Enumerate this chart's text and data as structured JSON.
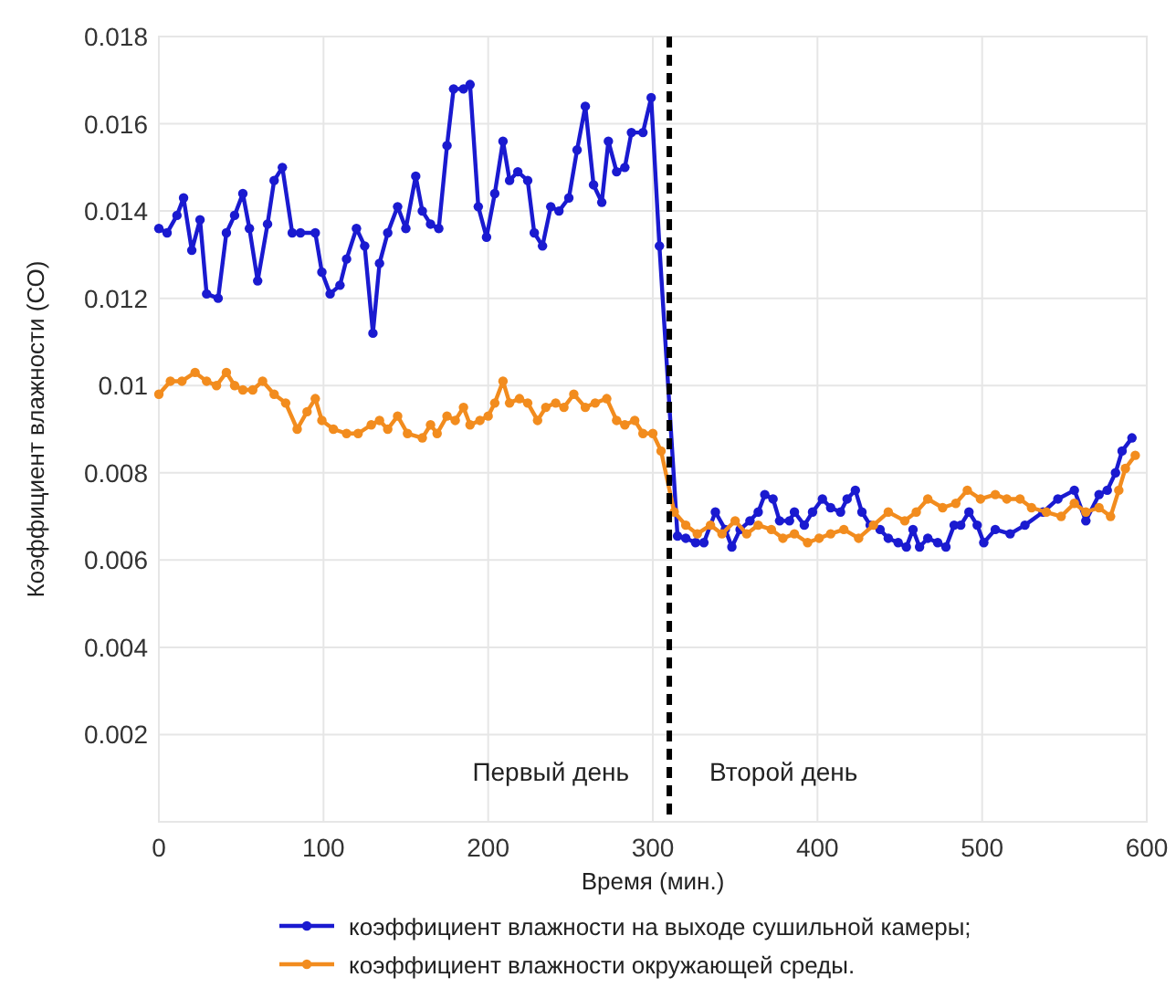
{
  "chart_data": {
    "type": "line",
    "xlabel": "Время (мин.)",
    "ylabel": "Коэффициент влажности (СО)",
    "xlim": [
      0,
      600
    ],
    "xticks": [
      0,
      100,
      200,
      300,
      400,
      500,
      600
    ],
    "ylim": [
      0,
      0.018
    ],
    "yticks": [
      0.002,
      0.004,
      0.006,
      0.008,
      0.01,
      0.012,
      0.014,
      0.016,
      0.018
    ],
    "grid": true,
    "legend": "bottom",
    "marker": "circle",
    "line_style": "solid",
    "ref_lines": [
      {
        "axis": "x",
        "value": 310,
        "color": "#000000",
        "line_style": "dashed"
      }
    ],
    "annotations": [
      "Первый день",
      "Второй день"
    ],
    "series": [
      {
        "name": "коэффициент влажности на выходе сушильной камеры;",
        "color": "#1a1ad0",
        "x": [
          0,
          5,
          11,
          15,
          20,
          25,
          29,
          36,
          41,
          46,
          51,
          55,
          60,
          66,
          70,
          75,
          81,
          86,
          95,
          99,
          104,
          110,
          114,
          120,
          125,
          130,
          134,
          139,
          145,
          150,
          156,
          160,
          165,
          170,
          175,
          179,
          185,
          189,
          194,
          199,
          204,
          209,
          213,
          218,
          224,
          228,
          233,
          238,
          243,
          249,
          254,
          259,
          264,
          269,
          273,
          278,
          283,
          287,
          294,
          299,
          304,
          315,
          320,
          326,
          331,
          338,
          344,
          348,
          353,
          359,
          364,
          368,
          373,
          377,
          383,
          386,
          392,
          397,
          403,
          408,
          414,
          418,
          423,
          427,
          432,
          438,
          443,
          449,
          454,
          458,
          462,
          467,
          473,
          478,
          483,
          487,
          492,
          497,
          501,
          508,
          517,
          526,
          537,
          546,
          556,
          563,
          571,
          576,
          581,
          585,
          591
        ],
        "values": [
          0.0136,
          0.0135,
          0.0139,
          0.0143,
          0.0131,
          0.0138,
          0.0121,
          0.012,
          0.0135,
          0.0139,
          0.0144,
          0.0136,
          0.0124,
          0.0137,
          0.0147,
          0.015,
          0.0135,
          0.0135,
          0.0135,
          0.0126,
          0.0121,
          0.0123,
          0.0129,
          0.0136,
          0.0132,
          0.0112,
          0.0128,
          0.0135,
          0.0141,
          0.0136,
          0.0148,
          0.014,
          0.0137,
          0.0136,
          0.0155,
          0.0168,
          0.0168,
          0.0169,
          0.0141,
          0.0134,
          0.0144,
          0.0156,
          0.0147,
          0.0149,
          0.0147,
          0.0135,
          0.0132,
          0.0141,
          0.014,
          0.0143,
          0.0154,
          0.0164,
          0.0146,
          0.0142,
          0.0156,
          0.0149,
          0.015,
          0.0158,
          0.0158,
          0.0166,
          0.0132,
          0.00655,
          0.0065,
          0.0064,
          0.0064,
          0.0071,
          0.0067,
          0.0063,
          0.0067,
          0.0069,
          0.0071,
          0.0075,
          0.0074,
          0.0069,
          0.0069,
          0.0071,
          0.0068,
          0.0071,
          0.0074,
          0.0072,
          0.0071,
          0.0074,
          0.0076,
          0.0071,
          0.0068,
          0.0067,
          0.0065,
          0.0064,
          0.0063,
          0.0067,
          0.0063,
          0.0065,
          0.0064,
          0.0063,
          0.0068,
          0.0068,
          0.0071,
          0.0068,
          0.0064,
          0.0067,
          0.0066,
          0.0068,
          0.0071,
          0.0074,
          0.0076,
          0.0069,
          0.0075,
          0.0076,
          0.008,
          0.0085,
          0.0088
        ]
      },
      {
        "name": "коэффициент влажности окружающей среды.",
        "color": "#f28c1e",
        "x": [
          0,
          7,
          14,
          22,
          29,
          35,
          41,
          46,
          51,
          57,
          63,
          70,
          77,
          84,
          90,
          95,
          99,
          106,
          114,
          121,
          129,
          134,
          139,
          145,
          151,
          160,
          165,
          169,
          175,
          180,
          185,
          189,
          195,
          200,
          204,
          209,
          213,
          219,
          224,
          230,
          235,
          241,
          246,
          252,
          259,
          265,
          272,
          278,
          283,
          289,
          294,
          300,
          305,
          313,
          320,
          327,
          335,
          342,
          350,
          357,
          364,
          372,
          379,
          386,
          394,
          401,
          408,
          416,
          425,
          434,
          443,
          453,
          460,
          467,
          476,
          484,
          491,
          499,
          508,
          515,
          523,
          530,
          539,
          548,
          556,
          563,
          571,
          578,
          583,
          587,
          593
        ],
        "values": [
          0.0098,
          0.0101,
          0.0101,
          0.0103,
          0.0101,
          0.01,
          0.0103,
          0.01,
          0.0099,
          0.0099,
          0.0101,
          0.0098,
          0.0096,
          0.009,
          0.0094,
          0.0097,
          0.0092,
          0.009,
          0.0089,
          0.0089,
          0.0091,
          0.0092,
          0.009,
          0.0093,
          0.0089,
          0.0088,
          0.0091,
          0.0089,
          0.0093,
          0.0092,
          0.0095,
          0.0091,
          0.0092,
          0.0093,
          0.0096,
          0.0101,
          0.0096,
          0.0097,
          0.0096,
          0.0092,
          0.0095,
          0.0096,
          0.0095,
          0.0098,
          0.0095,
          0.0096,
          0.0097,
          0.0092,
          0.0091,
          0.0092,
          0.0089,
          0.0089,
          0.0085,
          0.0071,
          0.0068,
          0.0066,
          0.0068,
          0.0066,
          0.0069,
          0.0066,
          0.0068,
          0.0067,
          0.0065,
          0.0066,
          0.0064,
          0.0065,
          0.0066,
          0.0067,
          0.0065,
          0.0068,
          0.0071,
          0.0069,
          0.0071,
          0.0074,
          0.0072,
          0.0073,
          0.0076,
          0.0074,
          0.0075,
          0.0074,
          0.0074,
          0.0072,
          0.0071,
          0.007,
          0.0073,
          0.0071,
          0.0072,
          0.007,
          0.0076,
          0.0081,
          0.0084
        ]
      }
    ]
  }
}
